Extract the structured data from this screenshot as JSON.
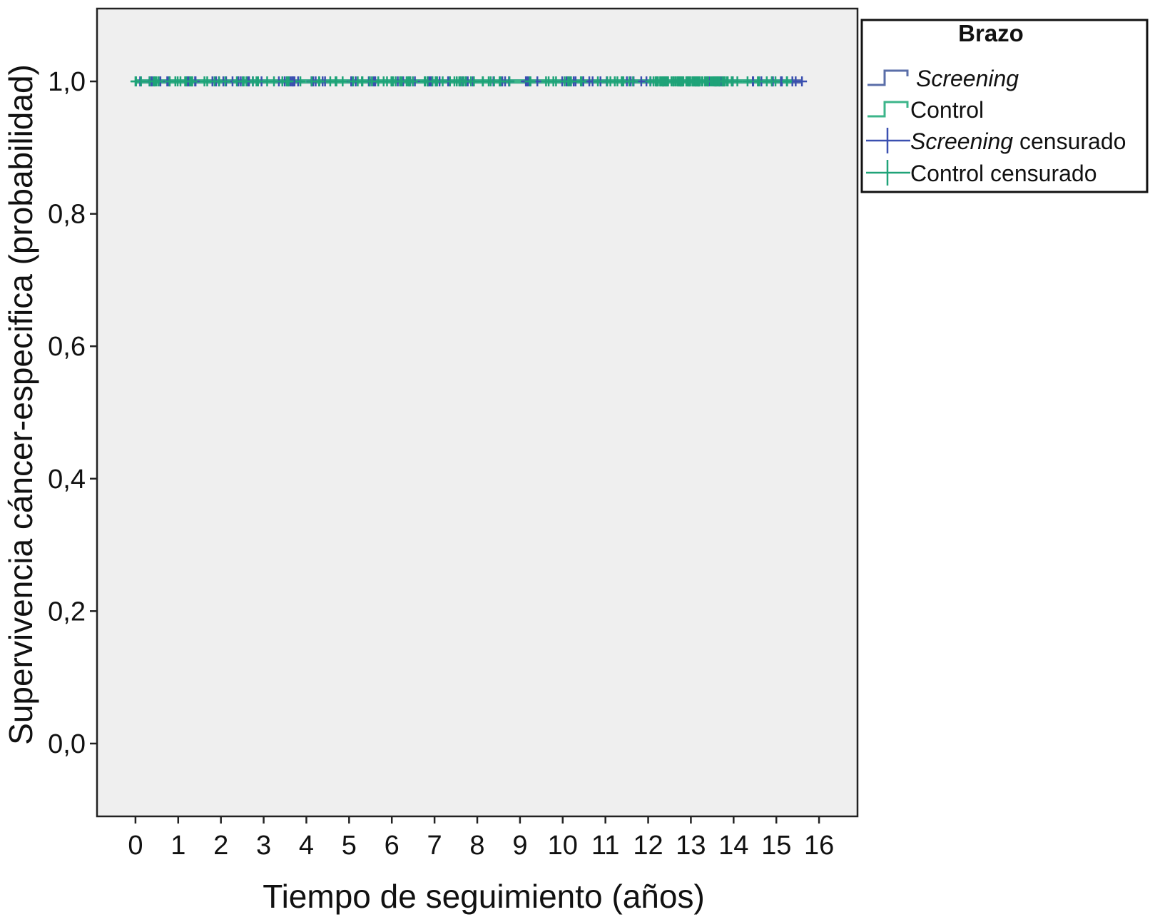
{
  "chart_data": {
    "type": "line",
    "xlabel": "Tiempo de seguimiento (años)",
    "ylabel": "Supervivencia cáncer-especifica (probabilidad)",
    "xlim": [
      -0.9,
      16.9
    ],
    "ylim": [
      -0.11,
      1.11
    ],
    "x_ticks": [
      0,
      1,
      2,
      3,
      4,
      5,
      6,
      7,
      8,
      9,
      10,
      11,
      12,
      13,
      14,
      15,
      16
    ],
    "x_tick_labels": [
      "0",
      "1",
      "2",
      "3",
      "4",
      "5",
      "6",
      "7",
      "8",
      "9",
      "10",
      "11",
      "12",
      "13",
      "14",
      "15",
      "16"
    ],
    "y_ticks": [
      0.0,
      0.2,
      0.4,
      0.6,
      0.8,
      1.0
    ],
    "y_tick_labels": [
      "0,0",
      "0,2",
      "0,4",
      "0,6",
      "0,8",
      "1,0"
    ],
    "grid": false,
    "background": "#efefef",
    "legend": {
      "title": "Brazo",
      "placement": "right-top",
      "entries": [
        {
          "key": "screening",
          "parts": [
            {
              "text": "Screening",
              "italic": true
            }
          ],
          "style": "step",
          "color": "#5a6ea8"
        },
        {
          "key": "control",
          "parts": [
            {
              "text": "Control",
              "italic": false
            }
          ],
          "style": "step",
          "color": "#3cb58a"
        },
        {
          "key": "screening_censored",
          "parts": [
            {
              "text": "Screening",
              "italic": true
            },
            {
              "text": " censurado",
              "italic": false
            }
          ],
          "style": "plus",
          "color": "#3a4fb0"
        },
        {
          "key": "control_censored",
          "parts": [
            {
              "text": "Control censurado",
              "italic": false
            }
          ],
          "style": "plus",
          "color": "#1fa378"
        }
      ]
    },
    "series": [
      {
        "name": "Screening",
        "color": "#5a6ea8",
        "censor_color": "#3a4fb0",
        "points": [
          [
            0,
            1.0
          ],
          [
            15.6,
            1.0
          ]
        ],
        "censored_x_range": [
          0,
          15.6
        ]
      },
      {
        "name": "Control",
        "color": "#3cb58a",
        "censor_color": "#1fa378",
        "points": [
          [
            0,
            1.0
          ],
          [
            15.4,
            1.0
          ]
        ],
        "censored_x_range": [
          0,
          15.4
        ],
        "dense_censoring_range": [
          12.2,
          13.8
        ]
      }
    ]
  }
}
